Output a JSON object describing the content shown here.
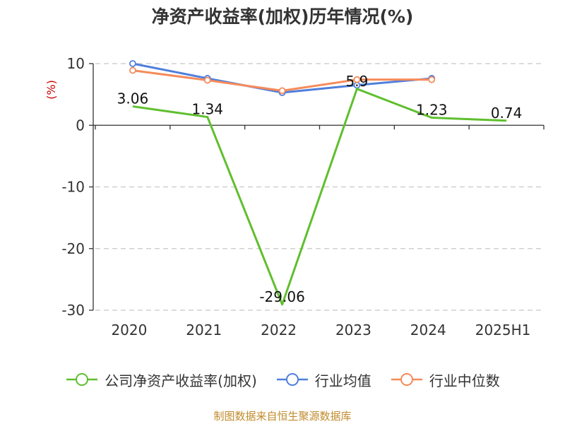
{
  "title": "净资产收益率(加权)历年情况(%)",
  "source": "制图数据来自恒生聚源数据库",
  "chart_data": {
    "type": "line",
    "categories": [
      "2020",
      "2021",
      "2022",
      "2023",
      "2024",
      "2025H1"
    ],
    "ylabel": "(%)",
    "ylim": [
      -30,
      10
    ],
    "yticks": [
      10,
      0,
      -10,
      -20,
      -30
    ],
    "grid": true,
    "legend_position": "bottom",
    "series": [
      {
        "name": "公司净资产收益率(加权)",
        "color": "#5fbf2e",
        "values": [
          3.06,
          1.34,
          -29.06,
          5.9,
          1.23,
          0.74
        ],
        "data_labels": [
          "3.06",
          "1.34",
          "-29.06",
          "5.9",
          "1.23",
          "0.74"
        ],
        "markers": false
      },
      {
        "name": "行业均值",
        "color": "#4f7fdc",
        "values": [
          10.0,
          7.6,
          5.3,
          6.5,
          7.6,
          null
        ],
        "markers": true
      },
      {
        "name": "行业中位数",
        "color": "#f58b5a",
        "values": [
          8.9,
          7.3,
          5.6,
          7.4,
          7.4,
          null
        ],
        "markers": true
      }
    ]
  }
}
